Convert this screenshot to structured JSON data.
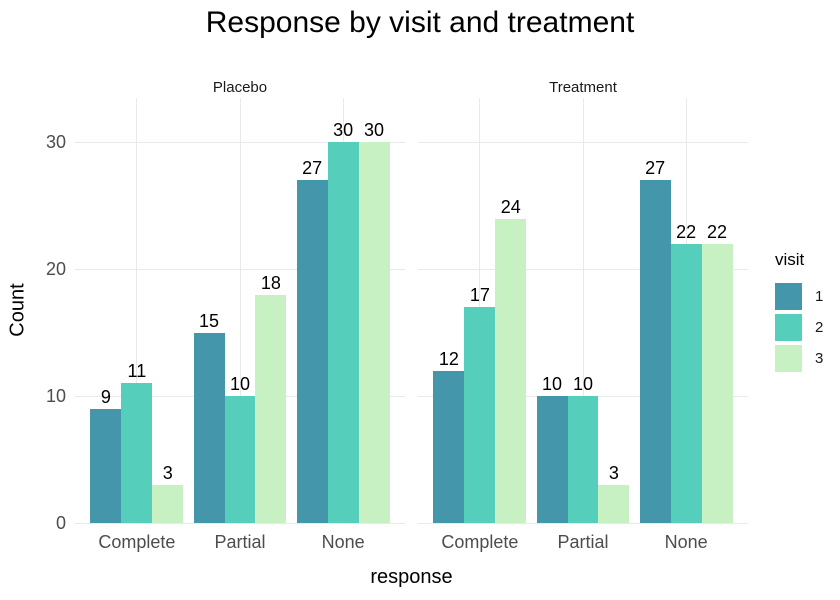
{
  "chart_data": {
    "type": "bar",
    "title": "Response by visit and treatment",
    "xlabel": "response",
    "ylabel": "Count",
    "categories": [
      "Complete",
      "Partial",
      "None"
    ],
    "facets": [
      {
        "label": "Placebo",
        "series": [
          {
            "name": "1",
            "values": [
              9,
              15,
              27
            ]
          },
          {
            "name": "2",
            "values": [
              11,
              10,
              30
            ]
          },
          {
            "name": "3",
            "values": [
              3,
              18,
              30
            ]
          }
        ]
      },
      {
        "label": "Treatment",
        "series": [
          {
            "name": "1",
            "values": [
              12,
              10,
              27
            ]
          },
          {
            "name": "2",
            "values": [
              17,
              10,
              22
            ]
          },
          {
            "name": "3",
            "values": [
              24,
              3,
              22
            ]
          }
        ]
      }
    ],
    "legend": {
      "title": "visit",
      "position": "right",
      "entries": [
        {
          "label": "1",
          "color": "#4497ab"
        },
        {
          "label": "2",
          "color": "#55cebb"
        },
        {
          "label": "3",
          "color": "#c7f1c2"
        }
      ]
    },
    "yticks": [
      0,
      10,
      20,
      30
    ],
    "ylim": [
      0,
      33.5
    ],
    "grid": "major",
    "bar_labels": true
  },
  "style": {
    "grid_color": "#e9e9e9",
    "axis_text_color": "#4d4d4d",
    "text_color": "#000000",
    "background": "#ffffff"
  }
}
